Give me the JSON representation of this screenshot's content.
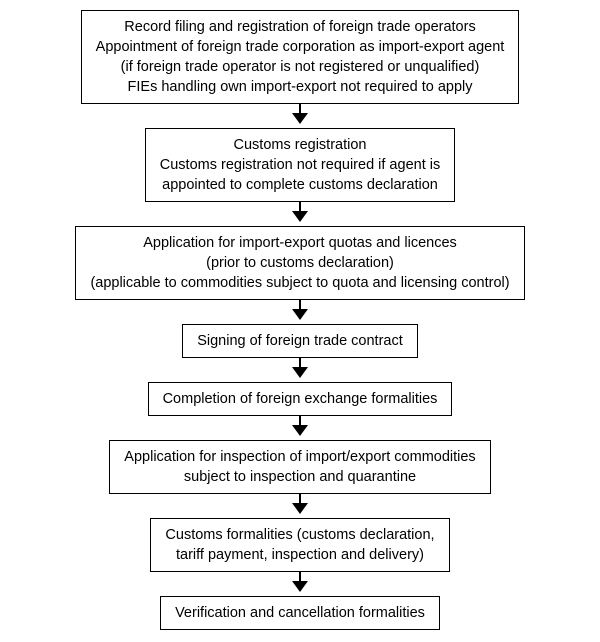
{
  "flow": {
    "type": "flowchart",
    "direction": "top-to-bottom",
    "background_color": "#ffffff",
    "box_border_color": "#000000",
    "box_border_width": 1.5,
    "text_color": "#000000",
    "font_size": 14.5,
    "font_family": "Arial",
    "arrow_color": "#000000",
    "nodes": [
      {
        "id": "n1",
        "lines": [
          "Record filing and registration of foreign trade operators",
          "Appointment of foreign trade corporation as import-export agent",
          "(if foreign trade operator is not registered or unqualified)",
          "FIEs handling own import-export not required to apply"
        ]
      },
      {
        "id": "n2",
        "lines": [
          "Customs registration",
          "Customs registration not required if agent is",
          "appointed to complete customs declaration"
        ]
      },
      {
        "id": "n3",
        "lines": [
          "Application for import-export quotas and licences",
          "(prior to customs declaration)",
          "(applicable to commodities subject to quota and licensing control)"
        ]
      },
      {
        "id": "n4",
        "lines": [
          "Signing of foreign trade contract"
        ]
      },
      {
        "id": "n5",
        "lines": [
          "Completion of foreign exchange formalities"
        ]
      },
      {
        "id": "n6",
        "lines": [
          "Application for inspection of import/export commodities",
          "subject to inspection and quarantine"
        ]
      },
      {
        "id": "n7",
        "lines": [
          "Customs formalities (customs declaration,",
          "tariff payment, inspection and delivery)"
        ]
      },
      {
        "id": "n8",
        "lines": [
          "Verification and cancellation formalities"
        ]
      }
    ]
  }
}
